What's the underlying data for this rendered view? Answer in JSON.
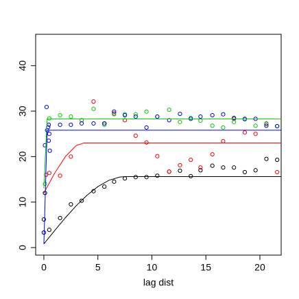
{
  "chart_data": {
    "type": "scatter",
    "x_label": "lag dist",
    "xlim": [
      -0.76,
      21.97
    ],
    "ylim": [
      -1.66,
      46.9
    ],
    "xticks": [
      0,
      5,
      10,
      15,
      20
    ],
    "yticks": [
      0,
      10,
      20,
      30,
      40
    ],
    "series": [
      {
        "color": "#000000",
        "mode": "points",
        "x": [
          0,
          0,
          0.1,
          0.5,
          1.5,
          2.5,
          3.5,
          4.6,
          5.6,
          6.5,
          7.5,
          8.5,
          9.5,
          10.5,
          11.6,
          12.6,
          13.6,
          14.5,
          15.6,
          16.6,
          17.6,
          18.6,
          19.6,
          20.6,
          21.6
        ],
        "values": [
          3.3,
          6.2,
          12,
          3.9,
          6.5,
          9.5,
          10.3,
          12.4,
          13.4,
          14.5,
          15.2,
          15.5,
          15.5,
          15.8,
          16.7,
          16.9,
          15.7,
          17,
          18,
          17.6,
          17.6,
          16.6,
          17,
          19.5,
          19.3
        ]
      },
      {
        "color": "#ff0000",
        "mode": "points",
        "x": [
          0.2,
          0.5,
          1.5,
          2.5,
          3.5,
          4.6,
          5.6,
          6.5,
          7.5,
          8.5,
          9.5,
          10.5,
          11.6,
          12.6,
          13.6,
          14.5,
          15.6,
          16.6,
          17.6,
          18.6,
          19.6,
          20.6,
          21.6
        ],
        "values": [
          16,
          16.4,
          15.8,
          20,
          28,
          32.1,
          27.3,
          29.5,
          28,
          24.6,
          23.1,
          20.1,
          16.7,
          18.1,
          19.3,
          17.6,
          20.5,
          23.4,
          28.3,
          25.3,
          25,
          27.2,
          16.6
        ]
      },
      {
        "color": "#00cd00",
        "mode": "points",
        "x": [
          0.1,
          0.5,
          1.5,
          2.5,
          3.5,
          4.6,
          5.6,
          6.5,
          7.5,
          8.5,
          9.5,
          10.5,
          11.6,
          12.6,
          13.6,
          14.5,
          15.6,
          16.6,
          17.6,
          18.6,
          19.6,
          20.6,
          21.6
        ],
        "values": [
          14,
          28.4,
          29.1,
          28.8,
          28,
          30.5,
          27,
          29.3,
          29.3,
          29.3,
          29.9,
          28.8,
          30.3,
          27.6,
          28.5,
          27.9,
          26.8,
          26.4,
          27.6,
          28.2,
          26.8,
          27.3,
          26.7
        ]
      },
      {
        "color": "#0000ff",
        "mode": "points",
        "x": [
          0,
          0.1,
          0.25,
          0.3,
          0.4,
          0.45,
          0.5,
          0.55,
          0.45,
          1.5,
          2.5,
          3.5,
          4.6,
          5.6,
          6.5,
          7.5,
          8.5,
          9.5,
          10.5,
          11.6,
          12.6,
          13.6,
          14.5,
          15.6,
          16.6,
          17.6,
          18.6,
          19.6,
          20.6,
          21.6
        ],
        "values": [
          3.3,
          22.5,
          30.9,
          25.8,
          26.5,
          23.5,
          25,
          21.3,
          27,
          27,
          27,
          27.3,
          27.3,
          27.3,
          29.9,
          29.1,
          28.8,
          26.4,
          28.8,
          28,
          29.4,
          28.3,
          28.8,
          29.1,
          29.3,
          28.5,
          28.3,
          28.3,
          26.8,
          26.7
        ]
      },
      {
        "color": "#000000",
        "mode": "line",
        "x": [
          0,
          1,
          2,
          3,
          4,
          5,
          6,
          7,
          7.5,
          22
        ],
        "values": [
          0.8,
          3.74,
          6.58,
          9.21,
          11.52,
          13.41,
          14.77,
          15.5,
          15.6,
          15.6
        ]
      },
      {
        "color": "#ff0000",
        "mode": "line",
        "x": [
          0,
          1,
          2,
          3,
          3.7,
          22
        ],
        "values": [
          12,
          16.35,
          20.04,
          22.44,
          23,
          23
        ]
      },
      {
        "color": "#00cd00",
        "mode": "line",
        "x": [
          0,
          0.3,
          22
        ],
        "values": [
          13,
          28.3,
          28.3
        ]
      },
      {
        "color": "#0000ff",
        "mode": "line",
        "x": [
          0,
          0.3,
          22
        ],
        "values": [
          0.8,
          25.8,
          25.8
        ]
      }
    ]
  }
}
